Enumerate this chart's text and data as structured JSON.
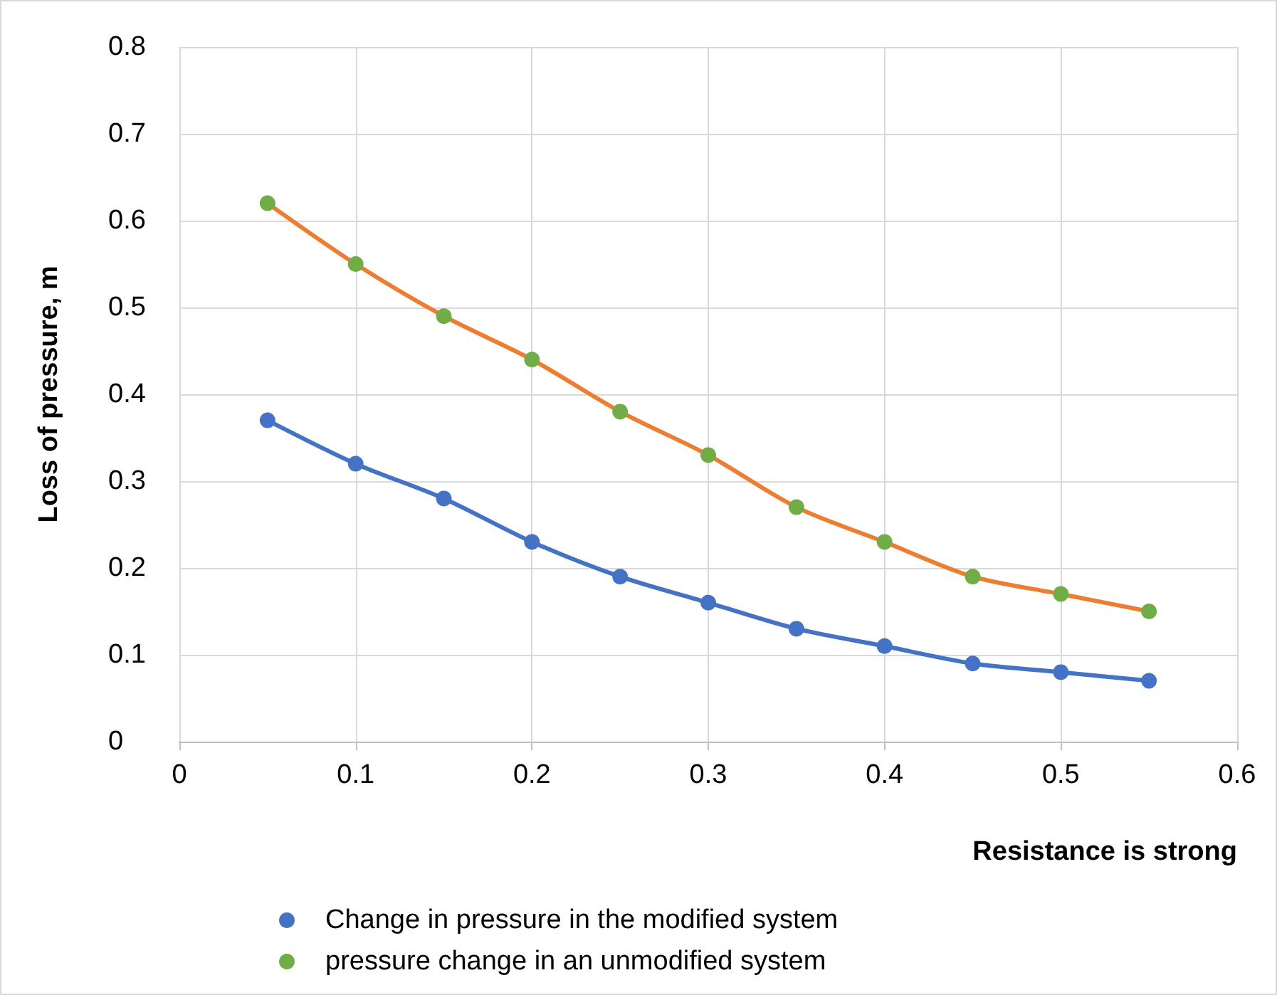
{
  "chart_data": {
    "type": "line",
    "xlabel": "Resistance is strong",
    "ylabel": "Loss of pressure, m",
    "x": [
      0.05,
      0.1,
      0.15,
      0.2,
      0.25,
      0.3,
      0.35,
      0.4,
      0.45,
      0.5,
      0.55
    ],
    "series": [
      {
        "name": "Change in pressure in the modified system",
        "color": "#4472c4",
        "colors": [
          "#4472c4",
          "#4472c4",
          "#4472c4",
          "#4472c4",
          "#4472c4",
          "#4472c4",
          "#4472c4",
          "#4472c4",
          "#4472c4",
          "#4472c4",
          "#4472c4"
        ],
        "values": [
          0.37,
          0.32,
          0.28,
          0.23,
          0.19,
          0.16,
          0.13,
          0.11,
          0.09,
          0.08,
          0.07
        ]
      },
      {
        "name": "pressure change in an unmodified system",
        "color": "#ed7d31",
        "colors": [
          "#70ad47",
          "#70ad47",
          "#70ad47",
          "#70ad47",
          "#70ad47",
          "#70ad47",
          "#70ad47",
          "#70ad47",
          "#70ad47",
          "#70ad47",
          "#70ad47"
        ],
        "values": [
          0.62,
          0.55,
          0.49,
          0.44,
          0.38,
          0.33,
          0.27,
          0.23,
          0.19,
          0.17,
          0.15
        ]
      }
    ],
    "xlim": [
      0,
      0.6
    ],
    "xticks": [
      0,
      0.1,
      0.2,
      0.3,
      0.4,
      0.5,
      0.6
    ],
    "ylim": [
      0,
      0.8
    ],
    "yticks": [
      0,
      0.1,
      0.2,
      0.3,
      0.4,
      0.5,
      0.6,
      0.7,
      0.8
    ],
    "grid": true,
    "legend": "bottom",
    "marker": "circle",
    "line_style": "solid"
  }
}
